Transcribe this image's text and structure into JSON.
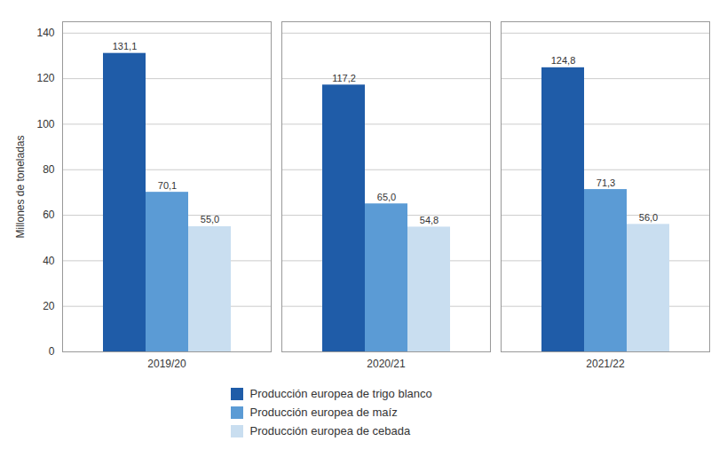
{
  "chart_data": {
    "type": "bar",
    "categories": [
      "2019/20",
      "2020/21",
      "2021/22"
    ],
    "series": [
      {
        "name": "Producción europea de trigo blanco",
        "color": "#1F5CA8",
        "values": [
          131.1,
          117.2,
          124.8
        ],
        "value_labels": [
          "131,1",
          "117,2",
          "124,8"
        ]
      },
      {
        "name": "Producción europea de maíz",
        "color": "#5B9BD5",
        "values": [
          70.1,
          65.0,
          71.3
        ],
        "value_labels": [
          "70,1",
          "65,0",
          "71,3"
        ]
      },
      {
        "name": "Producción europea de cebada",
        "color": "#C9DEF0",
        "values": [
          55.0,
          54.8,
          56.0
        ],
        "value_labels": [
          "55,0",
          "54,8",
          "56,0"
        ]
      }
    ],
    "ylabel": "Millones de toneladas",
    "ylim": [
      0,
      145
    ],
    "yticks": [
      0,
      20,
      40,
      60,
      80,
      100,
      120,
      140
    ],
    "grid": true,
    "data_labels": true,
    "legend": "lower center"
  }
}
